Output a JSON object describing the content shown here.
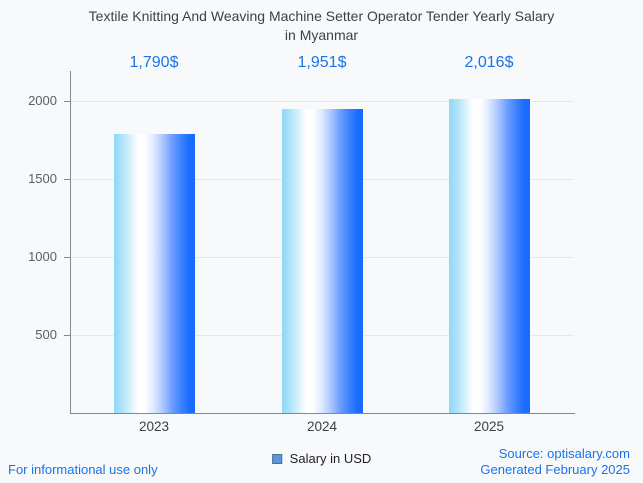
{
  "title": {
    "line1": "Textile Knitting And Weaving Machine Setter Operator Tender Yearly Salary",
    "line2": "in Myanmar"
  },
  "chart_data": {
    "type": "bar",
    "title": "Textile Knitting And Weaving Machine Setter Operator Tender Yearly Salary in Myanmar",
    "categories": [
      "2023",
      "2024",
      "2025"
    ],
    "values": [
      1790,
      1951,
      2016
    ],
    "value_labels": [
      "1,790$",
      "1,951$",
      "2,016$"
    ],
    "series_name": "Salary in USD",
    "xlabel": "",
    "ylabel": "",
    "ylim": [
      0,
      2200
    ],
    "yticks": [
      500,
      1000,
      1500,
      2000
    ],
    "grid": true,
    "legend_position": "bottom"
  },
  "legend": {
    "label": "Salary in USD",
    "marker_color": "#5c97de"
  },
  "footer": {
    "disclaimer": "For informational use only",
    "source": "Source: optisalary.com",
    "generated": "Generated February 2025"
  },
  "colors": {
    "background": "#f8f9fb",
    "accent_blue": "#1a73e8",
    "title_text": "#3e4144",
    "axis": "#85898d",
    "gridline": "#e7e8ea",
    "bar_gradient_left": "#8fd6f7",
    "bar_gradient_mid": "#ffffff",
    "bar_gradient_right": "#176bfd"
  }
}
